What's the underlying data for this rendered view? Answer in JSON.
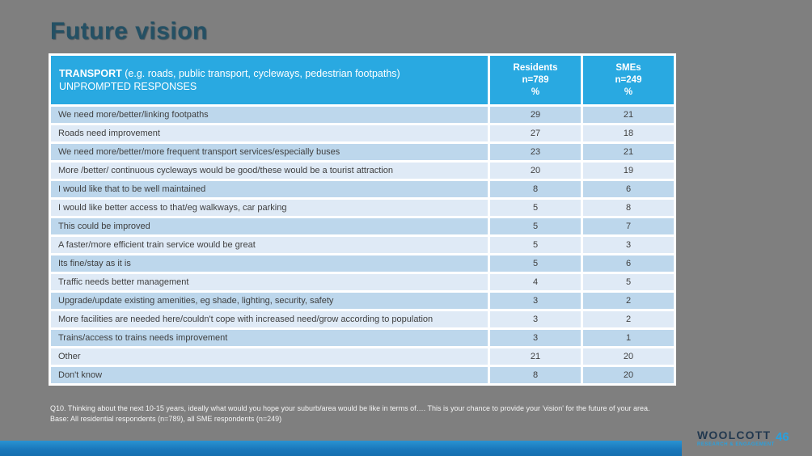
{
  "slide": {
    "title": "Future vision",
    "page_number": "46"
  },
  "table": {
    "header": {
      "col1_bold": "TRANSPORT",
      "col1_rest": " (e.g. roads, public transport, cycleways, pedestrian footpaths)",
      "col1_line2": "UNPROMPTED RESPONSES",
      "col2_line1": "Residents",
      "col2_line2": "n=789",
      "col2_line3": "%",
      "col3_line1": "SMEs",
      "col3_line2": "n=249",
      "col3_line3": "%"
    },
    "rows": [
      {
        "label": "We need more/better/linking footpaths",
        "residents": "29",
        "smes": "21"
      },
      {
        "label": "Roads need improvement",
        "residents": "27",
        "smes": "18"
      },
      {
        "label": "We need more/better/more frequent transport services/especially buses",
        "residents": "23",
        "smes": "21"
      },
      {
        "label": "More /better/ continuous cycleways would be good/these would be a tourist attraction",
        "residents": "20",
        "smes": "19"
      },
      {
        "label": "I would like that to be well maintained",
        "residents": "8",
        "smes": "6"
      },
      {
        "label": "I would like better access to that/eg walkways, car parking",
        "residents": "5",
        "smes": "8"
      },
      {
        "label": "This could be improved",
        "residents": "5",
        "smes": "7"
      },
      {
        "label": "A faster/more efficient train service would be great",
        "residents": "5",
        "smes": "3"
      },
      {
        "label": "Its fine/stay as it is",
        "residents": "5",
        "smes": "6"
      },
      {
        "label": "Traffic needs better management",
        "residents": "4",
        "smes": "5"
      },
      {
        "label": "Upgrade/update existing amenities, eg shade, lighting, security, safety",
        "residents": "3",
        "smes": "2"
      },
      {
        "label": "More facilities are needed here/couldn't cope with increased need/grow according to population",
        "residents": "3",
        "smes": "2"
      },
      {
        "label": "Trains/access to trains needs improvement",
        "residents": "3",
        "smes": "1"
      },
      {
        "label": "Other",
        "residents": "21",
        "smes": "20"
      },
      {
        "label": "Don't know",
        "residents": "8",
        "smes": "20"
      }
    ]
  },
  "footnote": {
    "line1": "Q10. Thinking about the next 10-15 years, ideally what would you hope your suburb/area would be like in terms of….  This is your chance to provide your 'vision' for the future of your area.",
    "line2": "Base: All residential respondents (n=789), all SME respondents (n=249)"
  },
  "logo": {
    "name": "WOOLCOTT",
    "subtitle": "RESEARCH & ENGAGEMENT"
  },
  "colors": {
    "slide_background": "#7f7f7f",
    "header_blue": "#29a9e1",
    "row_dark": "#bdd7ec",
    "row_light": "#dfeaf6",
    "title_teal": "#245064",
    "accent_blue": "#2aa0dd",
    "bottom_bar_blue": "#1a78bb"
  },
  "chart_data": {
    "type": "table",
    "title": "Future vision — TRANSPORT (e.g. roads, public transport, cycleways, pedestrian footpaths) UNPROMPTED RESPONSES",
    "columns": [
      "Response",
      "Residents n=789 %",
      "SMEs n=249 %"
    ],
    "rows": [
      [
        "We need more/better/linking footpaths",
        29,
        21
      ],
      [
        "Roads need improvement",
        27,
        18
      ],
      [
        "We need more/better/more frequent transport services/especially buses",
        23,
        21
      ],
      [
        "More /better/ continuous cycleways would be good/these would be a tourist attraction",
        20,
        19
      ],
      [
        "I would like that to be well maintained",
        8,
        6
      ],
      [
        "I would like better access to that/eg walkways, car parking",
        5,
        8
      ],
      [
        "This could be improved",
        5,
        7
      ],
      [
        "A faster/more efficient train service would be great",
        5,
        3
      ],
      [
        "Its fine/stay as it is",
        5,
        6
      ],
      [
        "Traffic needs better management",
        4,
        5
      ],
      [
        "Upgrade/update existing amenities, eg shade, lighting, security, safety",
        3,
        2
      ],
      [
        "More facilities are needed here/couldn't cope with increased need/grow according to population",
        3,
        2
      ],
      [
        "Trains/access to trains needs improvement",
        3,
        1
      ],
      [
        "Other",
        21,
        20
      ],
      [
        "Don't know",
        8,
        20
      ]
    ]
  }
}
